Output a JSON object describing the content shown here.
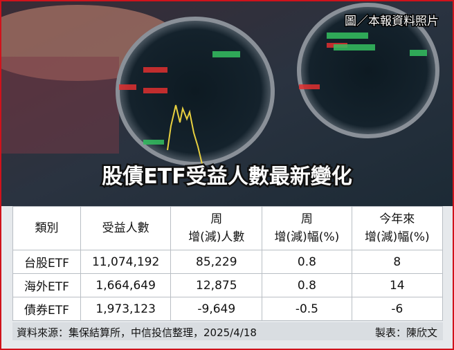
{
  "photo_credit": "圖／本報資料照片",
  "title": "股債ETF受益人數最新變化",
  "table": {
    "header": [
      [
        "類別"
      ],
      [
        "受益人數"
      ],
      [
        "周",
        "增(減)人數"
      ],
      [
        "周",
        "增(減)幅(%)"
      ],
      [
        "今年來",
        "增(減)幅(%)"
      ]
    ],
    "rows": [
      [
        "台股ETF",
        "11,074,192",
        "85,229",
        "0.8",
        "8"
      ],
      [
        "海外ETF",
        "1,664,649",
        "12,875",
        "0.8",
        "14"
      ],
      [
        "債券ETF",
        "1,973,123",
        "-9,649",
        "-0.5",
        "-6"
      ]
    ]
  },
  "footer": {
    "source": "資料來源：集保結算所，中信投信整理，2025/4/18",
    "maker": "製表：陳欣文"
  }
}
